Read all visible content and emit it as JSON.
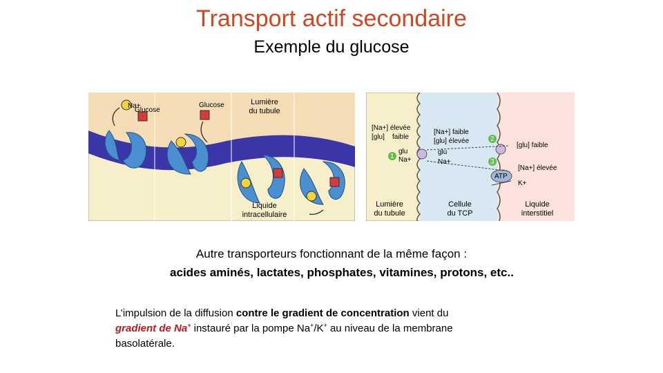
{
  "header": {
    "title": "Transport actif secondaire",
    "subtitle": "Exemple du glucose"
  },
  "figure_left": {
    "lumen_label_1": "Lumière",
    "lumen_label_2": "du tubule",
    "intra_label_1": "Liquide",
    "intra_label_2": "intracellulaire",
    "na": "Na+",
    "glucose": "Glucose",
    "glu": "Glu",
    "colors": {
      "membrane": "#3b36a8",
      "carrier": "#4a8fd0",
      "lumen": "#f4ddb5",
      "cell": "#f6efc9",
      "glu_box": "#d63a3a",
      "na_ball": "#f1d53a"
    }
  },
  "figure_right": {
    "na_high": "[Na+] élevée",
    "glu_low": "[glu]",
    "glu_low_2": "faible",
    "na_low": "[Na+] faible",
    "glu_high": "[glu]  élevée",
    "glu_label": "glu",
    "na_label": "Na+",
    "glu_mid": "glu",
    "na_mid": "Na+",
    "glu_faible_right": "[glu] faible",
    "na_elevee_right": "[Na+] élevée",
    "atp": "ATP",
    "k": "K+",
    "step1": "1",
    "step2": "2",
    "step3": "3",
    "lumen_1": "Lumière",
    "lumen_2": "du tubule",
    "cell_1": "Cellule",
    "cell_2": "du TCP",
    "interstitial_1": "Liquide",
    "interstitial_2": "interstitiel",
    "colors": {
      "lumen": "#f6efc9",
      "cell": "#d8e8f2",
      "interstitial": "#fbe2dc",
      "step": "#5cbf4a"
    }
  },
  "body": {
    "line1": "Autre transporteurs fonctionnant  de la même façon :",
    "line2": "acides aminés, lactates, phosphates, vitamines, protons, etc..",
    "para_a": "L’impulsion de la diffusion ",
    "para_b": "contre le gradient de concentration",
    "para_c": " vient du",
    "para_d": "gradient de Na",
    "para_d_sup": "+",
    "para_e": " instauré par la pompe Na",
    "para_e_sup": "+",
    "para_f": "/K",
    "para_f_sup": "+",
    "para_g": " au niveau de la membrane",
    "para_h": "basolatérale."
  }
}
